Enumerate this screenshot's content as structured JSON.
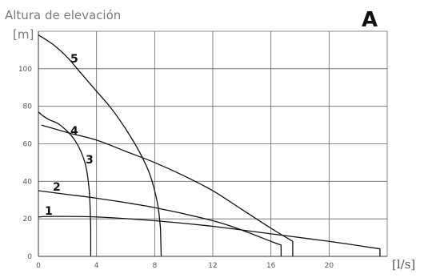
{
  "panel_letter": "A",
  "chart_data": {
    "type": "line",
    "title": "",
    "ylabel": "Altura de elevación",
    "yunit": "[m]",
    "xlabel": "",
    "xunit": "[l/s]",
    "xlim": [
      0,
      24
    ],
    "ylim": [
      0,
      120
    ],
    "xticks": [
      0,
      4,
      8,
      12,
      16,
      20
    ],
    "yticks": [
      0,
      20,
      40,
      60,
      80,
      100
    ],
    "grid": true,
    "series": [
      {
        "label": "1",
        "points": [
          [
            0,
            21
          ],
          [
            1,
            21.3
          ],
          [
            4,
            21
          ],
          [
            8,
            19
          ],
          [
            12,
            16
          ],
          [
            16,
            12
          ],
          [
            20,
            8
          ],
          [
            23.5,
            4
          ],
          [
            23.5,
            0
          ]
        ]
      },
      {
        "label": "2",
        "points": [
          [
            0,
            35
          ],
          [
            2,
            33
          ],
          [
            4,
            31
          ],
          [
            8,
            26
          ],
          [
            12,
            19
          ],
          [
            14,
            14
          ],
          [
            16,
            8
          ],
          [
            16.7,
            6
          ],
          [
            16.7,
            0
          ]
        ]
      },
      {
        "label": "3",
        "points": [
          [
            0,
            77
          ],
          [
            0.3,
            75
          ],
          [
            0.7,
            73
          ],
          [
            1.5,
            70
          ],
          [
            2.5,
            62
          ],
          [
            3.2,
            50
          ],
          [
            3.5,
            35
          ],
          [
            3.6,
            15
          ],
          [
            3.6,
            0
          ]
        ]
      },
      {
        "label": "4",
        "points": [
          [
            0.2,
            70
          ],
          [
            2,
            66
          ],
          [
            4,
            62
          ],
          [
            6,
            56
          ],
          [
            8,
            50
          ],
          [
            10,
            43
          ],
          [
            12,
            35
          ],
          [
            14,
            25
          ],
          [
            16,
            15
          ],
          [
            17.5,
            8
          ],
          [
            17.5,
            0
          ]
        ]
      },
      {
        "label": "5",
        "points": [
          [
            0,
            118
          ],
          [
            1,
            113
          ],
          [
            2,
            106
          ],
          [
            3,
            97
          ],
          [
            4,
            88
          ],
          [
            5,
            79
          ],
          [
            6,
            68
          ],
          [
            7,
            55
          ],
          [
            7.7,
            43
          ],
          [
            8.2,
            28
          ],
          [
            8.4,
            15
          ],
          [
            8.45,
            0
          ]
        ]
      }
    ]
  }
}
